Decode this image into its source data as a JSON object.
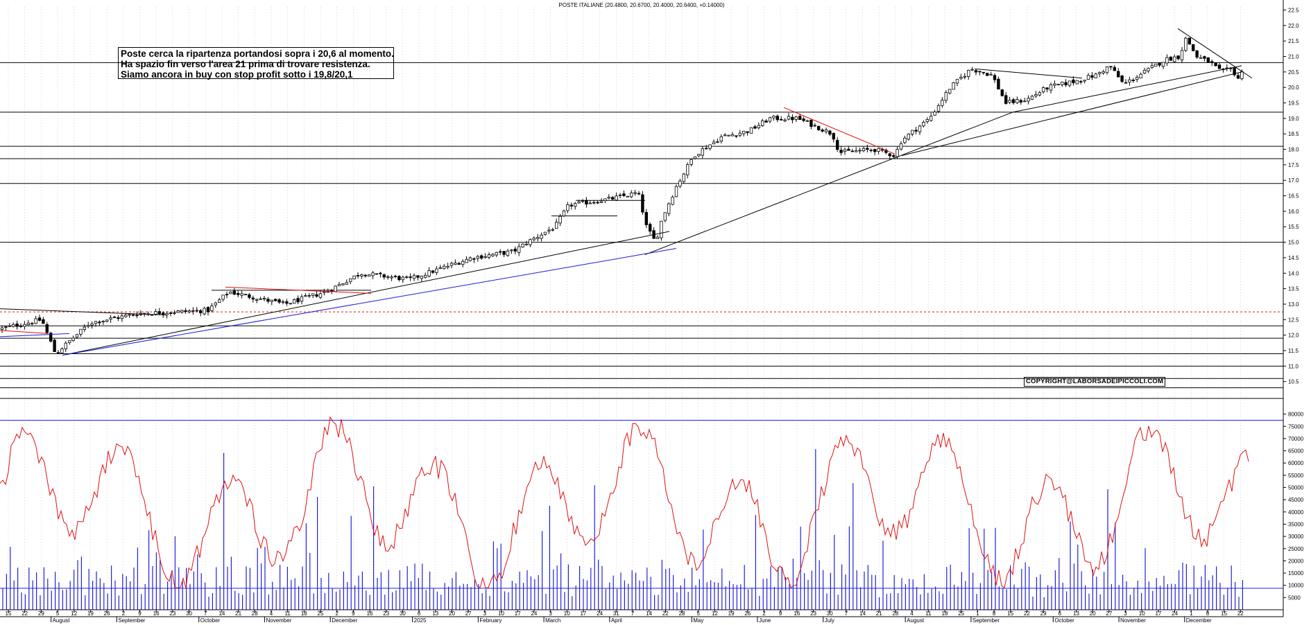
{
  "header": {
    "title": "POSTE ITALIANE (20.4800, 20.6700, 20.4000, 20.6400, +0.14000)"
  },
  "annotation": {
    "lines": [
      "Poste cerca la ripartenza portandosi sopra i 20,6 al momento.",
      "Ha spazio fin verso l'area 21  prima di trovare resistenza.",
      "Siamo ancora in buy con stop profit sotto i 19,8/20,1"
    ]
  },
  "watermark": "COPYRIGHT@LABORSADEIPICCOLI.COM",
  "colors": {
    "candle": "#000000",
    "trendline_black": "#000000",
    "trendline_blue": "#1a1ad6",
    "trendline_red": "#e01010",
    "volume": "#2020d8",
    "oscillator": "#e01010",
    "level_line": "#2020d8"
  },
  "chart_data": [
    {
      "type": "candlestick",
      "title": "POSTE ITALIANE (20.4800, 20.6700, 20.4000, 20.6400, +0.14000)",
      "yaxis_side": "right",
      "ylim": [
        10.0,
        22.6
      ],
      "yticks": [
        "10.5",
        "11.0",
        "11.5",
        "12.0",
        "12.5",
        "13.0",
        "13.5",
        "14.0",
        "14.5",
        "15.0",
        "15.5",
        "16.0",
        "16.5",
        "17.0",
        "17.5",
        "18.0",
        "18.5",
        "19.0",
        "19.5",
        "20.0",
        "20.5",
        "21.0",
        "21.5",
        "22.0",
        "22.5"
      ],
      "grid": true,
      "last_bar": {
        "open": 20.48,
        "high": 20.67,
        "low": 20.4,
        "close": 20.64,
        "change": 0.14
      },
      "close_path": [
        [
          0,
          12.2
        ],
        [
          60,
          12.5
        ],
        [
          80,
          11.4
        ],
        [
          130,
          12.4
        ],
        [
          200,
          12.7
        ],
        [
          300,
          12.8
        ],
        [
          330,
          13.4
        ],
        [
          410,
          13.0
        ],
        [
          470,
          13.4
        ],
        [
          520,
          14.0
        ],
        [
          590,
          13.8
        ],
        [
          680,
          14.5
        ],
        [
          740,
          14.7
        ],
        [
          760,
          15.0
        ],
        [
          800,
          15.5
        ],
        [
          820,
          16.2
        ],
        [
          880,
          16.4
        ],
        [
          920,
          16.6
        ],
        [
          932,
          15.5
        ],
        [
          945,
          15.0
        ],
        [
          955,
          15.8
        ],
        [
          975,
          16.8
        ],
        [
          1000,
          17.8
        ],
        [
          1040,
          18.4
        ],
        [
          1080,
          18.6
        ],
        [
          1110,
          19.0
        ],
        [
          1150,
          19.0
        ],
        [
          1180,
          18.7
        ],
        [
          1200,
          18.5
        ],
        [
          1210,
          17.9
        ],
        [
          1260,
          18.0
        ],
        [
          1290,
          17.8
        ],
        [
          1300,
          18.3
        ],
        [
          1340,
          19.0
        ],
        [
          1370,
          20.0
        ],
        [
          1400,
          20.6
        ],
        [
          1430,
          20.4
        ],
        [
          1450,
          19.5
        ],
        [
          1480,
          19.6
        ],
        [
          1510,
          20.0
        ],
        [
          1550,
          20.2
        ],
        [
          1580,
          20.4
        ],
        [
          1600,
          20.7
        ],
        [
          1620,
          20.1
        ],
        [
          1650,
          20.5
        ],
        [
          1680,
          20.9
        ],
        [
          1700,
          21.0
        ],
        [
          1710,
          21.6
        ],
        [
          1725,
          21.0
        ],
        [
          1745,
          20.8
        ],
        [
          1760,
          20.5
        ],
        [
          1775,
          20.6
        ],
        [
          1785,
          20.3
        ],
        [
          1795,
          20.64
        ]
      ],
      "horizontal_levels": [
        10.3,
        10.6,
        11.0,
        11.4,
        11.9,
        12.3,
        15.0,
        16.9,
        17.7,
        18.1,
        19.2,
        20.8
      ],
      "dashed_levels": [
        12.75
      ],
      "segment_levels": [
        {
          "x": [
            795,
            890
          ],
          "value": 15.85
        },
        {
          "x": [
            830,
            930
          ],
          "value": 16.35
        },
        {
          "x": [
            305,
            535
          ],
          "value": 13.45
        }
      ],
      "trendlines": [
        {
          "color": "black",
          "points": [
            [
              90,
              11.35
            ],
            [
              965,
              15.35
            ]
          ]
        },
        {
          "color": "black",
          "points": [
            [
              930,
              14.6
            ],
            [
              1460,
              19.2
            ]
          ]
        },
        {
          "color": "black",
          "points": [
            [
              1460,
              19.2
            ],
            [
              1790,
              20.7
            ]
          ]
        },
        {
          "color": "black",
          "points": [
            [
              1300,
              17.8
            ],
            [
              1790,
              20.5
            ]
          ]
        },
        {
          "color": "black",
          "points": [
            [
              0,
              12.85
            ],
            [
              240,
              12.65
            ]
          ]
        },
        {
          "color": "black",
          "points": [
            [
              1405,
              20.6
            ],
            [
              1560,
              20.3
            ]
          ]
        },
        {
          "color": "black",
          "points": [
            [
              1698,
              21.9
            ],
            [
              1805,
              20.3
            ]
          ]
        },
        {
          "color": "blue",
          "points": [
            [
              0,
              11.95
            ],
            [
              100,
              12.05
            ]
          ]
        },
        {
          "color": "blue",
          "points": [
            [
              90,
              11.35
            ],
            [
              975,
              14.8
            ]
          ]
        },
        {
          "color": "red",
          "points": [
            [
              0,
              12.15
            ],
            [
              70,
              12.05
            ]
          ]
        },
        {
          "color": "red",
          "points": [
            [
              325,
              13.55
            ],
            [
              535,
              13.35
            ]
          ]
        },
        {
          "color": "red",
          "points": [
            [
              1130,
              19.35
            ],
            [
              1290,
              17.85
            ]
          ]
        }
      ]
    },
    {
      "type": "bar",
      "series": [
        {
          "name": "",
          "kind": "volume_bars"
        },
        {
          "name": "",
          "kind": "oscillator_line"
        }
      ],
      "yaxis_side": "right",
      "ylim": [
        0,
        85000
      ],
      "yticks": [
        "5000",
        "10000",
        "15000",
        "20000",
        "25000",
        "30000",
        "35000",
        "40000",
        "45000",
        "50000",
        "55000",
        "60000",
        "65000",
        "70000",
        "75000",
        "80000"
      ],
      "reference_lines": [
        8800,
        77500
      ],
      "grid": true
    }
  ],
  "xaxis": {
    "day_ticks": [
      "15",
      "22",
      "29",
      "5",
      "12",
      "19",
      "26",
      "2",
      "9",
      "16",
      "23",
      "30",
      "7",
      "14",
      "21",
      "28",
      "4",
      "11",
      "18",
      "25",
      "2",
      "9",
      "16",
      "23",
      "30",
      "6",
      "13",
      "20",
      "27",
      "3",
      "10",
      "17",
      "24",
      "3",
      "10",
      "17",
      "24",
      "31",
      "7",
      "14",
      "22",
      "28",
      "5",
      "12",
      "19",
      "26",
      "2",
      "9",
      "16",
      "23",
      "30",
      "7",
      "14",
      "21",
      "28",
      "4",
      "11",
      "18",
      "25",
      "1",
      "8",
      "15",
      "22",
      "29",
      "6",
      "13",
      "20",
      "27",
      "3",
      "10",
      "17",
      "24",
      "1",
      "8",
      "15",
      "22"
    ],
    "months": [
      {
        "label": "August",
        "tick": 3
      },
      {
        "label": "September",
        "tick": 7
      },
      {
        "label": "October",
        "tick": 12
      },
      {
        "label": "November",
        "tick": 16
      },
      {
        "label": "December",
        "tick": 20
      },
      {
        "label": "2025",
        "tick": 25
      },
      {
        "label": "February",
        "tick": 29
      },
      {
        "label": "March",
        "tick": 33
      },
      {
        "label": "April",
        "tick": 37
      },
      {
        "label": "May",
        "tick": 42
      },
      {
        "label": "June",
        "tick": 46
      },
      {
        "label": "July",
        "tick": 50
      },
      {
        "label": "August",
        "tick": 55
      },
      {
        "label": "September",
        "tick": 59
      },
      {
        "label": "October",
        "tick": 64
      },
      {
        "label": "November",
        "tick": 68
      },
      {
        "label": "December",
        "tick": 72
      }
    ]
  }
}
